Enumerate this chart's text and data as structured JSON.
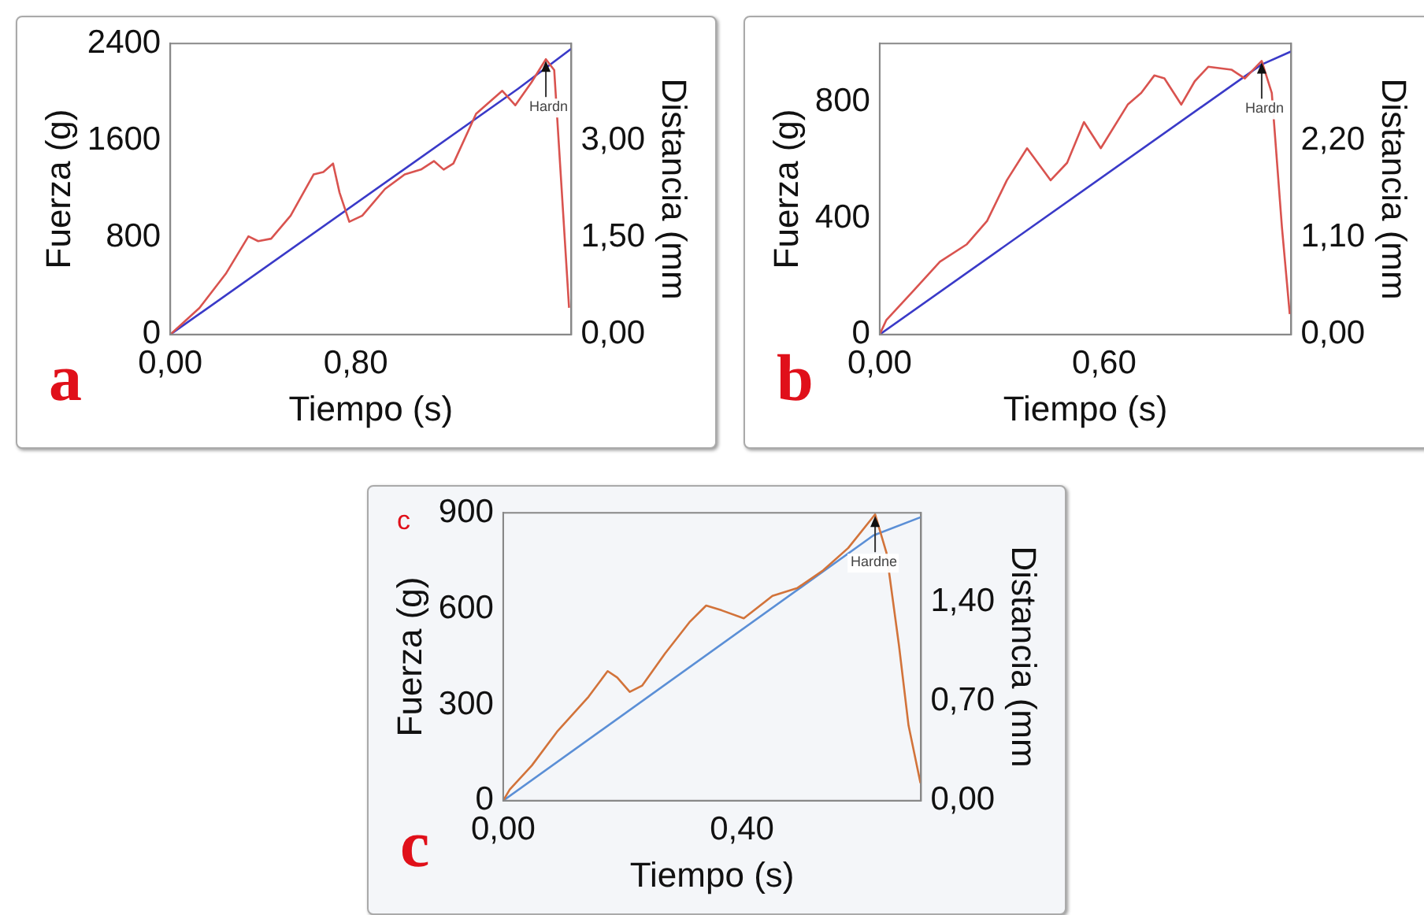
{
  "chart_data": [
    {
      "type": "line",
      "title": "a",
      "xlabel": "Tiempo (s)",
      "ylabel": "Fuerza (g)",
      "y2label": "Distancia (mm",
      "xlim": [
        0,
        1.73
      ],
      "xticks": [
        {
          "value": 0,
          "label": "0,00"
        },
        {
          "value": 0.8,
          "label": "0,80"
        }
      ],
      "ylim": [
        0,
        2400
      ],
      "yticks": [
        0,
        800,
        1600,
        2400
      ],
      "y2lim": [
        0,
        4.5
      ],
      "y2ticks": [
        {
          "value": 0,
          "label": "0,00"
        },
        {
          "value": 1.5,
          "label": "1,50"
        },
        {
          "value": 3,
          "label": "3,00"
        }
      ],
      "series": [
        {
          "type": "line",
          "color": "#d9534f",
          "x": [
            0,
            0.126,
            0.239,
            0.337,
            0.379,
            0.435,
            0.519,
            0.618,
            0.66,
            0.702,
            0.73,
            0.772,
            0.828,
            0.926,
            1.011,
            1.081,
            1.137,
            1.179,
            1.221,
            1.319,
            1.432,
            1.488,
            1.558,
            1.62,
            1.656,
            1.72
          ],
          "values": [
            0,
            220,
            500,
            810,
            770,
            790,
            980,
            1320,
            1340,
            1410,
            1170,
            930,
            980,
            1200,
            1320,
            1360,
            1430,
            1360,
            1410,
            1820,
            2010,
            1890,
            2080,
            2270,
            2180,
            220
          ]
        },
        {
          "type": "line",
          "color": "#3a3ac8",
          "axis": "y2",
          "x": [
            0,
            1.5,
            1.73
          ],
          "values": [
            0,
            3.8,
            4.42
          ]
        }
      ],
      "annotations": [
        {
          "text": "Hardn",
          "x": 1.62,
          "y": 2270
        }
      ]
    },
    {
      "type": "line",
      "title": "b",
      "xlabel": "Tiempo (s)",
      "ylabel": "Fuerza (g)",
      "y2label": "Distancia (mm",
      "xlim": [
        0,
        1.1
      ],
      "xticks": [
        {
          "value": 0,
          "label": "0,00"
        },
        {
          "value": 0.6,
          "label": "0,60"
        }
      ],
      "ylim": [
        0,
        1000
      ],
      "yticks": [
        0,
        400,
        800
      ],
      "y2lim": [
        0,
        3.3
      ],
      "y2ticks": [
        {
          "value": 0,
          "label": "0,00"
        },
        {
          "value": 1.1,
          "label": "1,10"
        },
        {
          "value": 2.2,
          "label": "2,20"
        }
      ],
      "series": [
        {
          "type": "line",
          "color": "#d9534f",
          "x": [
            0,
            0.018,
            0.09,
            0.161,
            0.233,
            0.287,
            0.34,
            0.394,
            0.457,
            0.501,
            0.546,
            0.591,
            0.663,
            0.699,
            0.734,
            0.761,
            0.806,
            0.842,
            0.878,
            0.94,
            0.976,
            1.021,
            1.048,
            1.075,
            1.096
          ],
          "values": [
            0,
            50,
            150,
            250,
            310,
            390,
            530,
            640,
            530,
            590,
            730,
            640,
            790,
            830,
            890,
            880,
            790,
            870,
            920,
            910,
            880,
            940,
            830,
            370,
            70
          ]
        },
        {
          "type": "line",
          "color": "#3a3ac8",
          "axis": "y2",
          "x": [
            0,
            1.02,
            1.1
          ],
          "values": [
            0,
            3.06,
            3.21
          ]
        }
      ],
      "annotations": [
        {
          "text": "Hardn",
          "x": 1.021,
          "y": 940
        }
      ]
    },
    {
      "type": "line",
      "title": "c",
      "xlabel": "Tiempo (s)",
      "ylabel": "Fuerza (g)",
      "y2label": "Distancia (mm",
      "xlim": [
        0,
        0.7
      ],
      "xticks": [
        {
          "value": 0,
          "label": "0,00"
        },
        {
          "value": 0.4,
          "label": "0,40"
        }
      ],
      "ylim": [
        0,
        900
      ],
      "yticks": [
        0,
        300,
        600,
        900
      ],
      "y2lim": [
        0,
        2.03
      ],
      "y2ticks": [
        {
          "value": 0,
          "label": "0,00"
        },
        {
          "value": 0.7,
          "label": "0,70"
        },
        {
          "value": 1.4,
          "label": "1,40"
        }
      ],
      "series": [
        {
          "type": "line",
          "color": "#d2733a",
          "x": [
            0,
            0.011,
            0.048,
            0.09,
            0.143,
            0.175,
            0.191,
            0.212,
            0.233,
            0.271,
            0.313,
            0.34,
            0.366,
            0.403,
            0.451,
            0.493,
            0.536,
            0.578,
            0.623,
            0.642,
            0.663,
            0.679,
            0.699
          ],
          "values": [
            0,
            35,
            110,
            215,
            325,
            405,
            385,
            340,
            360,
            460,
            560,
            610,
            595,
            570,
            640,
            665,
            720,
            790,
            895,
            775,
            485,
            235,
            55
          ]
        },
        {
          "type": "line",
          "color": "#5b8fd6",
          "axis": "y2",
          "x": [
            0,
            0.62,
            0.7
          ],
          "values": [
            0,
            1.87,
            2.0
          ]
        }
      ],
      "annotations": [
        "c",
        {
          "text": "Hardne",
          "x": 0.623,
          "y": 895
        }
      ]
    }
  ]
}
